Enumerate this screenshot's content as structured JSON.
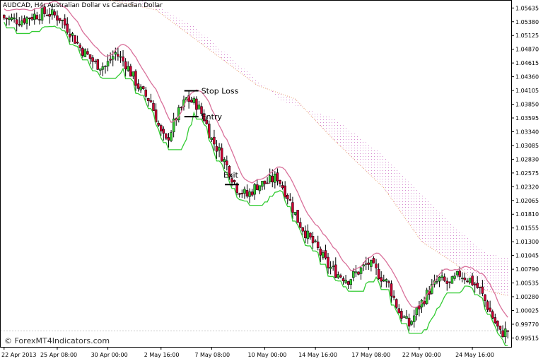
{
  "chart_data": {
    "type": "candlestick",
    "title": "AUDCAD, H4:  Australian Dollar vs Canadian Dollar",
    "watermark": "© ForexMT4Indicators.com",
    "ylim": [
      0.9935,
      1.0577
    ],
    "y_ticks": [
      "1.05635",
      "1.05380",
      "1.05125",
      "1.04870",
      "1.04615",
      "1.04360",
      "1.04105",
      "1.03850",
      "1.03595",
      "1.03340",
      "1.03085",
      "1.02830",
      "1.02575",
      "1.02320",
      "1.02065",
      "1.01810",
      "1.01555",
      "1.01300",
      "1.01045",
      "1.00790",
      "1.00535",
      "1.00280",
      "1.00025",
      "0.99770",
      "0.99515"
    ],
    "x_ticks": [
      "22 Apr 2013",
      "25 Apr 08:00",
      "30 Apr 00:00",
      "2 May 16:00",
      "7 May 08:00",
      "10 May 00:00",
      "14 May 16:00",
      "17 May 08:00",
      "22 May 00:00",
      "24 May 16:00"
    ],
    "bar_count": 200,
    "current_price": "0.99650",
    "close_anchors": [
      [
        0,
        1.0545
      ],
      [
        6,
        1.054
      ],
      [
        12,
        1.055
      ],
      [
        17,
        1.0555
      ],
      [
        22,
        1.0545
      ],
      [
        26,
        1.052
      ],
      [
        30,
        1.049
      ],
      [
        36,
        1.046
      ],
      [
        40,
        1.0455
      ],
      [
        44,
        1.048
      ],
      [
        48,
        1.046
      ],
      [
        54,
        1.041
      ],
      [
        58,
        1.039
      ],
      [
        62,
        1.033
      ],
      [
        64,
        1.0315
      ],
      [
        68,
        1.036
      ],
      [
        72,
        1.0395
      ],
      [
        76,
        1.0385
      ],
      [
        79,
        1.036
      ],
      [
        82,
        1.032
      ],
      [
        86,
        1.029
      ],
      [
        92,
        1.023
      ],
      [
        96,
        1.0215
      ],
      [
        100,
        1.0235
      ],
      [
        104,
        1.024
      ],
      [
        108,
        1.025
      ],
      [
        112,
        1.0215
      ],
      [
        116,
        1.017
      ],
      [
        120,
        1.014
      ],
      [
        124,
        1.0115
      ],
      [
        128,
        1.0085
      ],
      [
        132,
        1.007
      ],
      [
        136,
        1.006
      ],
      [
        140,
        1.0075
      ],
      [
        144,
        1.009
      ],
      [
        148,
        1.007
      ],
      [
        152,
        1.005
      ],
      [
        156,
        1.0
      ],
      [
        160,
        0.9975
      ],
      [
        164,
        1.001
      ],
      [
        168,
        1.004
      ],
      [
        172,
        1.006
      ],
      [
        176,
        1.005
      ],
      [
        180,
        1.007
      ],
      [
        184,
        1.006
      ],
      [
        188,
        1.004
      ],
      [
        192,
        1.0
      ],
      [
        196,
        0.996
      ],
      [
        199,
        0.9965
      ]
    ],
    "ma_line": {
      "name": "Moving Average",
      "color": "#d9709a"
    },
    "trail_line": {
      "name": "Trailing Stop",
      "color": "#33cc33"
    },
    "cloud": {
      "upper": [
        [
          0,
          1.06
        ],
        [
          30,
          1.0605
        ],
        [
          55,
          1.058
        ],
        [
          75,
          1.053
        ],
        [
          90,
          1.047
        ],
        [
          110,
          1.039
        ],
        [
          130,
          1.036
        ],
        [
          150,
          1.029
        ],
        [
          165,
          1.022
        ],
        [
          180,
          1.015
        ],
        [
          190,
          1.011
        ],
        [
          199,
          1.01
        ]
      ],
      "lower": [
        [
          0,
          1.06
        ],
        [
          30,
          1.059
        ],
        [
          60,
          1.056
        ],
        [
          80,
          1.049
        ],
        [
          100,
          1.042
        ],
        [
          115,
          1.0395
        ],
        [
          130,
          1.032
        ],
        [
          150,
          1.023
        ],
        [
          165,
          1.013
        ],
        [
          178,
          1.009
        ],
        [
          190,
          1.004
        ],
        [
          199,
          1.003
        ]
      ],
      "color": "#d78ad0",
      "edge_color": "#e8a070"
    },
    "annotations": [
      {
        "label": "Stop Loss",
        "bar": 74,
        "price": 1.041
      },
      {
        "label": "Entry",
        "bar": 74,
        "price": 1.0362
      },
      {
        "label": "Exit",
        "bar": 90,
        "price": 1.0236
      }
    ]
  },
  "colors": {
    "bull": "#33cc33",
    "bear": "#cc0033",
    "wick": "#000000",
    "axis": "#000000"
  }
}
